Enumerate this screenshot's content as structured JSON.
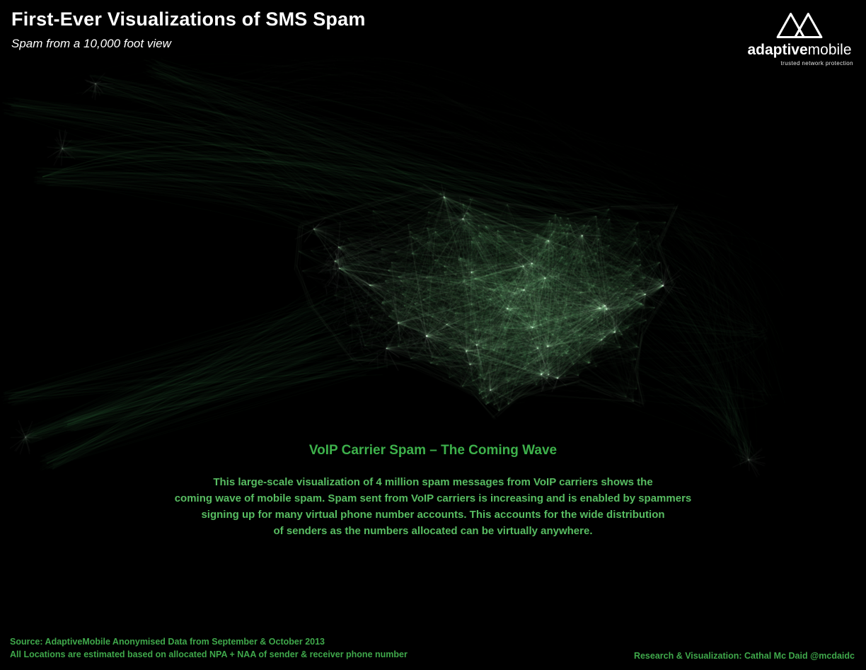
{
  "header": {
    "title": "First-Ever Visualizations of SMS Spam",
    "subtitle": "Spam from a 10,000 foot view"
  },
  "logo": {
    "brand_primary": "adaptive",
    "brand_secondary": "mobile",
    "tagline": "trusted network protection"
  },
  "annotation": {
    "heading": "VoIP Carrier Spam – The Coming Wave",
    "lines": [
      "This large-scale visualization of 4 million spam messages from VoIP carriers shows the",
      "coming wave of mobile spam. Spam sent from VoIP carriers is increasing and is enabled by spammers",
      "signing up for many virtual phone number accounts. This accounts for the wide distribution",
      "of senders as the numbers allocated can be virtually anywhere."
    ]
  },
  "footer": {
    "source_line_1": "Source: AdaptiveMobile Anonymised Data from September & October 2013",
    "source_line_2": "All Locations are estimated based on allocated NPA + NAA of sender & receiver phone number",
    "credit": "Research & Visualization: Cathal Mc Daid @mcdaidc"
  },
  "colors": {
    "background": "#000000",
    "title_text": "#ffffff",
    "heading_green": "#3db14b",
    "body_green": "#58bd62",
    "footer_green": "#3fa84b",
    "network_green": "#46c95f"
  },
  "visualization": {
    "type": "geographic-network",
    "description": "4 million spam messages from VoIP carriers drawn as translucent green links between estimated US sender and receiver locations, forming the shape of the continental United States with long-distance flows fanning to off-map points."
  }
}
